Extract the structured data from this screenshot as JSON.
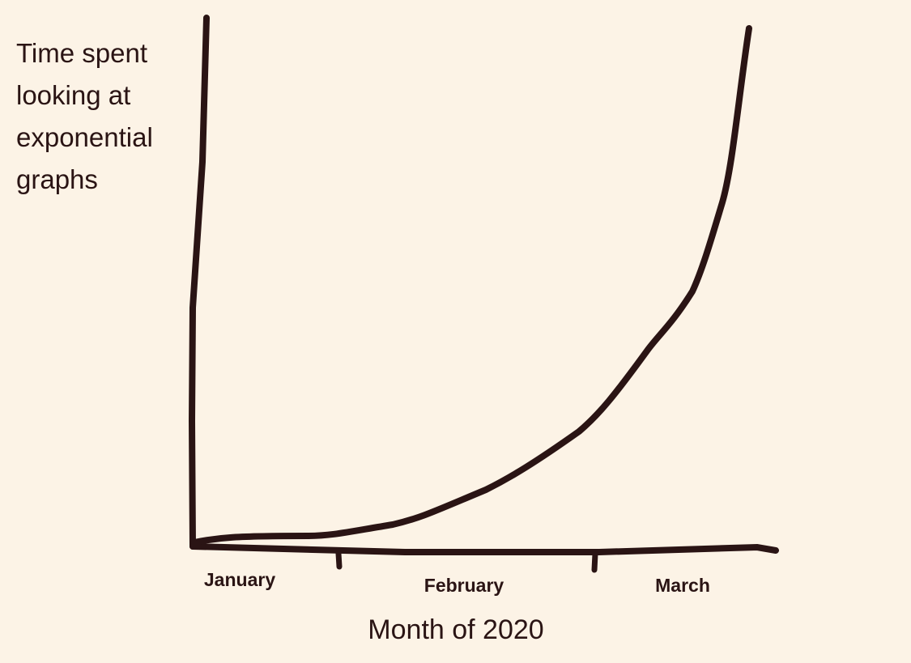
{
  "chart_data": {
    "type": "line",
    "y_label": "Time spent looking at exponential graphs",
    "x_label": "Month of 2020",
    "categories": [
      "January",
      "February",
      "March"
    ],
    "color": "#2a1414"
  }
}
